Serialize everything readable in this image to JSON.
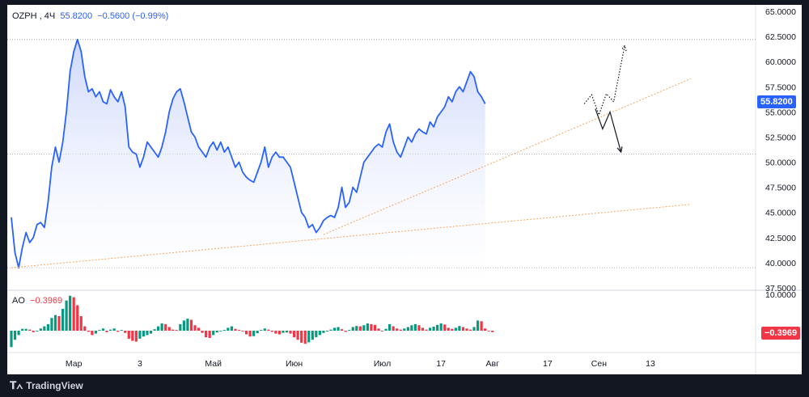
{
  "header": {
    "symbol": "OZPH",
    "interval": "4Ч",
    "price": "55.8200",
    "change": "−0.5600 (−0.99%)"
  },
  "ao_header": {
    "label": "AO",
    "value": "−0.3969"
  },
  "price_tag": "55.8200",
  "ao_tag": "−0.3969",
  "footer": {
    "brand": "TradingView"
  },
  "colors": {
    "line": "#2962ff",
    "area_top": "#c7d3fb",
    "trendline": "#f7a65a",
    "ao_up": "#089981",
    "ao_down": "#f23645",
    "price_tag": "#2962ff",
    "ao_tag": "#f23645"
  },
  "chart_data": [
    {
      "type": "area",
      "symbol": "OZPH",
      "ylim": [
        37.5,
        65.0
      ],
      "y_ticks": [
        "37.5000",
        "40.0000",
        "42.5000",
        "45.0000",
        "47.5000",
        "50.0000",
        "52.5000",
        "55.0000",
        "57.5000",
        "60.0000",
        "62.5000",
        "65.0000"
      ],
      "x_ticks": [
        "Мар",
        "3",
        "Май",
        "Июн",
        "Июл",
        "17",
        "Авг",
        "17",
        "Сен",
        "13"
      ],
      "x_tick_index": [
        17,
        35,
        55,
        77,
        101,
        117,
        131,
        146,
        160,
        174
      ],
      "series": [
        {
          "values": [
            44.5,
            41.0,
            39.5,
            41.5,
            43.0,
            42.0,
            42.5,
            43.8,
            44.0,
            43.5,
            46.0,
            49.5,
            51.5,
            50.0,
            52.0,
            55.0,
            59.0,
            61.0,
            62.2,
            61.0,
            58.5,
            57.0,
            57.3,
            56.5,
            57.0,
            56.0,
            55.8,
            57.2,
            56.5,
            56.0,
            57.0,
            55.5,
            51.5,
            51.0,
            50.8,
            49.5,
            50.5,
            52.0,
            51.5,
            51.0,
            50.5,
            51.5,
            53.0,
            55.0,
            56.3,
            57.0,
            57.3,
            56.0,
            54.5,
            53.0,
            52.5,
            51.5,
            51.0,
            50.5,
            51.5,
            52.0,
            51.2,
            52.0,
            51.0,
            51.5,
            50.5,
            49.5,
            50.0,
            49.0,
            48.5,
            48.2,
            48.0,
            49.0,
            50.0,
            51.5,
            49.5,
            50.5,
            51.0,
            50.5,
            50.5,
            50.0,
            49.5,
            48.0,
            46.5,
            45.0,
            44.5,
            43.5,
            43.8,
            43.0,
            43.5,
            44.2,
            44.5,
            44.7,
            44.5,
            45.5,
            47.5,
            45.5,
            46.0,
            47.5,
            47.0,
            48.5,
            50.0,
            50.5,
            51.0,
            51.5,
            51.8,
            51.5,
            53.0,
            53.8,
            52.0,
            51.0,
            50.5,
            51.5,
            52.5,
            52.0,
            52.8,
            53.3,
            53.0,
            52.8,
            54.0,
            53.5,
            54.5,
            55.0,
            55.5,
            56.5,
            56.0,
            57.0,
            57.5,
            57.0,
            58.0,
            59.0,
            58.5,
            57.0,
            56.5,
            55.8
          ],
          "last": 55.82
        }
      ],
      "trendlines": [
        {
          "from": [
            0,
            39.5
          ],
          "to": [
            185,
            45.8
          ],
          "style": "dotted"
        },
        {
          "from": [
            85,
            42.8
          ],
          "to": [
            185,
            58.3
          ],
          "style": "dotted"
        }
      ],
      "horizontal_lines": [
        62.2,
        50.8,
        39.5
      ],
      "projections": [
        {
          "style": "dotted",
          "points": [
            [
              156,
              55.8
            ],
            [
              158,
              56.7
            ],
            [
              160,
              54.7
            ],
            [
              162,
              56.8
            ],
            [
              164,
              56.0
            ],
            [
              167,
              61.6
            ]
          ]
        },
        {
          "style": "solid",
          "points": [
            [
              159,
              55.3
            ],
            [
              161,
              53.3
            ],
            [
              163,
              55.0
            ],
            [
              166,
              51.0
            ]
          ]
        }
      ]
    },
    {
      "type": "bar",
      "indicator": "AO",
      "ylim": [
        -6,
        10
      ],
      "y_ticks": [
        "10.0000"
      ],
      "values": [
        -4.5,
        -2.5,
        -1.2,
        0.5,
        0.5,
        0.3,
        -0.4,
        -0.2,
        0.6,
        1.2,
        1.8,
        3.5,
        4.3,
        4.0,
        6.0,
        8.3,
        9.6,
        9.2,
        7.0,
        4.0,
        1.2,
        -0.3,
        -1.2,
        -0.8,
        0.2,
        0.6,
        -0.4,
        0.3,
        0.6,
        -0.3,
        0.2,
        -0.6,
        -2.2,
        -2.8,
        -3.0,
        -2.2,
        -1.6,
        -1.2,
        -0.8,
        0.4,
        1.2,
        2.0,
        1.8,
        1.0,
        0.3,
        0.2,
        1.8,
        2.8,
        3.3,
        3.0,
        1.5,
        0.8,
        -0.6,
        -1.8,
        -2.0,
        -1.2,
        -0.5,
        -0.2,
        0.2,
        0.8,
        1.2,
        0.5,
        0.2,
        -0.2,
        -1.0,
        -1.6,
        -1.5,
        -0.7,
        0.2,
        0.6,
        0.3,
        -0.3,
        -0.8,
        -1.0,
        -0.6,
        -0.5,
        -0.8,
        -1.8,
        -2.5,
        -3.3,
        -3.6,
        -3.2,
        -2.5,
        -1.8,
        -1.2,
        -0.6,
        -0.2,
        0.3,
        0.8,
        1.0,
        0.4,
        -0.3,
        0.2,
        1.0,
        1.3,
        1.2,
        1.5,
        2.0,
        1.8,
        1.6,
        0.6,
        -0.2,
        0.5,
        1.8,
        1.2,
        0.6,
        0.3,
        0.6,
        1.0,
        1.5,
        1.8,
        1.5,
        0.8,
        0.3,
        0.8,
        1.1,
        1.6,
        2.0,
        1.7,
        0.8,
        0.5,
        0.8,
        1.3,
        1.0,
        0.6,
        0.3,
        1.0,
        2.8,
        2.6,
        0.6,
        0.0,
        -0.4
      ]
    }
  ]
}
